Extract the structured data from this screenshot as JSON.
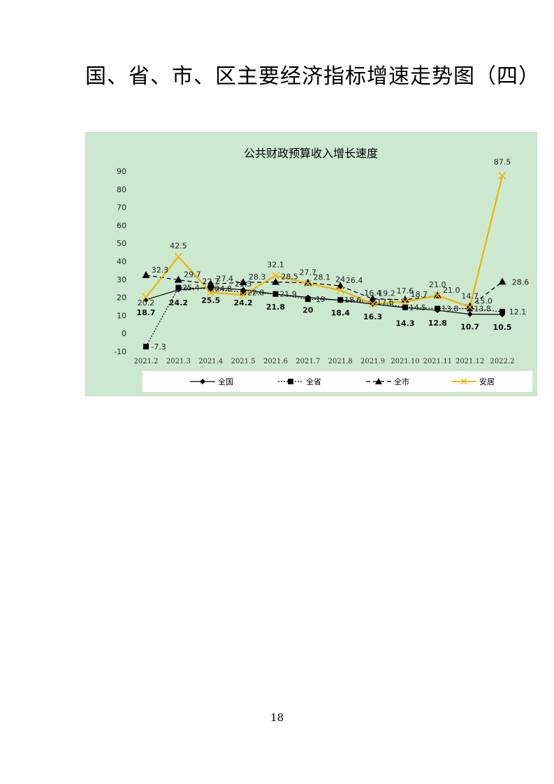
{
  "page_title": "国、省、市、区主要经济指标增速走势图（四）",
  "page_number": "18",
  "colors": {
    "background": "#cce8cf",
    "national": "#000000",
    "province": "#000000",
    "city": "#000000",
    "anju": "#f0b400"
  },
  "chart_data": {
    "type": "line",
    "title": "公共财政预算收入增长速度",
    "categories": [
      "2021.2",
      "2021.3",
      "2021.4",
      "2021.5",
      "2021.6",
      "2021.7",
      "2021.8",
      "2021.9",
      "2021.10",
      "2021.11",
      "2021.12",
      "2022.2"
    ],
    "y_ticks": [
      "90",
      "80",
      "70",
      "60",
      "50",
      "40",
      "30",
      "20",
      "10",
      "0",
      "-10"
    ],
    "ylim": [
      -10,
      90
    ],
    "grid": false,
    "legend_position": "bottom",
    "series": [
      {
        "name": "全国",
        "marker": "diamond",
        "dash": "solid",
        "values": [
          18.7,
          24.2,
          25.5,
          24.2,
          21.8,
          20,
          18.4,
          16.3,
          14.3,
          12.8,
          10.7,
          10.5
        ],
        "labels": [
          "18.7",
          "24.2",
          "25.5",
          "24.2",
          "21.8",
          "20",
          "18.4",
          "16.3",
          "14.3",
          "12.8",
          "10.7",
          "10.5"
        ]
      },
      {
        "name": "全省",
        "marker": "square",
        "dash": "dotted",
        "values": [
          -7.3,
          25.4,
          24.8,
          22.8,
          21.9,
          19,
          18.6,
          17.6,
          14.5,
          13.8,
          13.8,
          12.1
        ],
        "labels": [
          "-7.3",
          "25.4",
          "24.8",
          "22.8",
          "21.9",
          "19",
          "18.6",
          "17.6",
          "14.5",
          "13.8",
          "13.8",
          "12.1"
        ]
      },
      {
        "name": "全市",
        "marker": "triangle",
        "dash": "dashed",
        "values": [
          32.3,
          29.7,
          27.4,
          28.3,
          28.5,
          28.1,
          26.4,
          19.2,
          18.7,
          21.0,
          15.0,
          28.6
        ],
        "labels": [
          "32.3",
          "29.7",
          "27.4",
          "28.3",
          "28.5",
          "28.1",
          "26.4",
          "19.2",
          "18.7",
          "21.0",
          "15.0",
          "28.6"
        ]
      },
      {
        "name": "安居",
        "marker": "x",
        "dash": "solid",
        "values": [
          20.2,
          42.5,
          22.7,
          21.3,
          32.1,
          27.7,
          24,
          16.4,
          17.6,
          21.0,
          14.7,
          87.5
        ],
        "labels": [
          "20.2",
          "42.5",
          "22.7",
          "21.3",
          "32.1",
          "27.7",
          "24",
          "16.4",
          "17.6",
          "21.0",
          "14.7",
          "87.5"
        ]
      }
    ]
  }
}
